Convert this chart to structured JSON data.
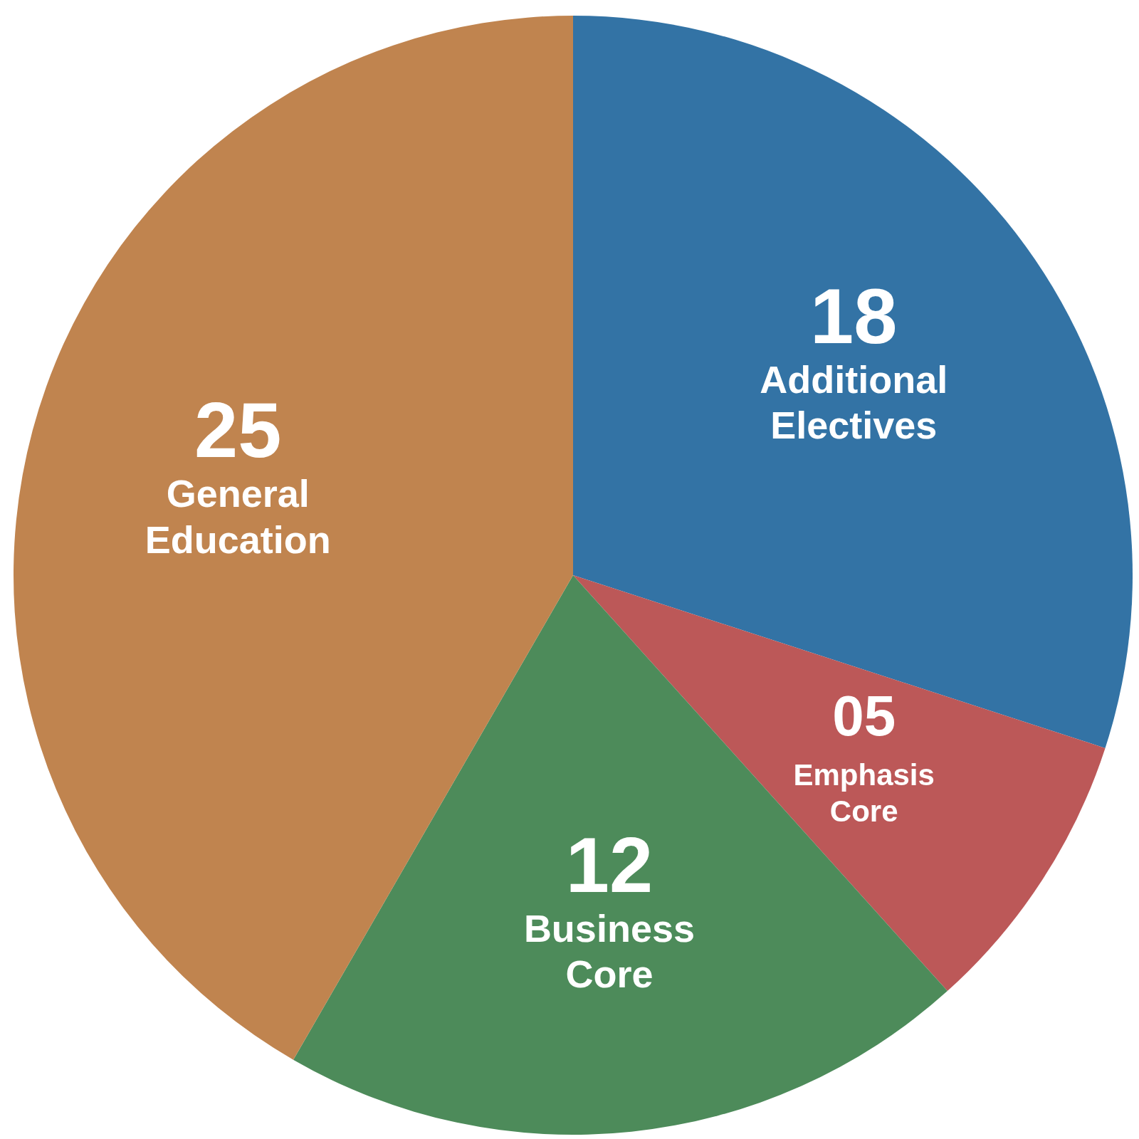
{
  "chart_data": {
    "type": "pie",
    "categories": [
      "Additional Electives",
      "Emphasis Core",
      "Business Core",
      "General Education"
    ],
    "values": [
      18,
      5,
      12,
      25
    ],
    "colors": [
      "#3373a5",
      "#bc5858",
      "#4d8b5a",
      "#c0844f"
    ],
    "value_labels": [
      "18",
      "05",
      "12",
      "25"
    ]
  }
}
